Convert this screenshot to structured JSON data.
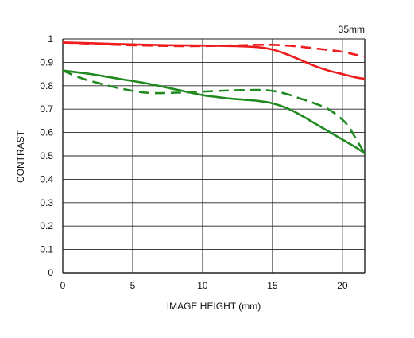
{
  "chart_data": {
    "type": "line",
    "title": "35mm",
    "xlabel": "IMAGE HEIGHT (mm)",
    "ylabel": "CONTRAST",
    "xlim": [
      0,
      21.6
    ],
    "ylim": [
      0,
      1
    ],
    "xticks": [
      0,
      5,
      10,
      15,
      20
    ],
    "xtick_labels": [
      "0",
      "5",
      "10",
      "15",
      "20"
    ],
    "yticks": [
      0,
      0.1,
      0.2,
      0.3,
      0.4,
      0.5,
      0.6,
      0.7,
      0.8,
      0.9,
      1
    ],
    "ytick_labels": [
      "0",
      "0.1",
      "0.2",
      "0.3",
      "0.4",
      "0.5",
      "0.6",
      "0.7",
      "0.8",
      "0.9",
      "1"
    ],
    "grid": true,
    "colors": {
      "red": "#ee1c1c",
      "green": "#1f8a1f",
      "grid": "#222222"
    },
    "series": [
      {
        "color": "#ee1c1c",
        "dash": "solid",
        "x": [
          0,
          2,
          4,
          6,
          8,
          10,
          12,
          14,
          15,
          16,
          17,
          18,
          19,
          20,
          21,
          21.6
        ],
        "y": [
          0.985,
          0.982,
          0.978,
          0.975,
          0.973,
          0.972,
          0.97,
          0.965,
          0.955,
          0.935,
          0.91,
          0.885,
          0.865,
          0.85,
          0.835,
          0.83
        ]
      },
      {
        "color": "#ee1c1c",
        "dash": "dashed",
        "x": [
          0,
          2,
          4,
          6,
          8,
          10,
          12,
          14,
          15,
          16,
          17,
          18,
          19,
          20,
          21,
          21.6
        ],
        "y": [
          0.985,
          0.98,
          0.975,
          0.972,
          0.97,
          0.97,
          0.972,
          0.975,
          0.975,
          0.972,
          0.967,
          0.96,
          0.953,
          0.945,
          0.932,
          0.925
        ]
      },
      {
        "color": "#1f8a1f",
        "dash": "solid",
        "x": [
          0,
          2,
          4,
          6,
          8,
          10,
          11,
          12,
          13,
          14,
          15,
          16,
          17,
          18,
          19,
          20,
          21,
          21.6
        ],
        "y": [
          0.865,
          0.85,
          0.83,
          0.81,
          0.785,
          0.76,
          0.752,
          0.745,
          0.74,
          0.735,
          0.725,
          0.705,
          0.675,
          0.64,
          0.605,
          0.57,
          0.535,
          0.51
        ]
      },
      {
        "color": "#1f8a1f",
        "dash": "dashed",
        "x": [
          0,
          1,
          2,
          4,
          6,
          8,
          10,
          12,
          14,
          15,
          16,
          17,
          18,
          19,
          20,
          20.5,
          21,
          21.6
        ],
        "y": [
          0.865,
          0.84,
          0.82,
          0.79,
          0.77,
          0.77,
          0.775,
          0.78,
          0.782,
          0.778,
          0.765,
          0.745,
          0.725,
          0.7,
          0.655,
          0.62,
          0.57,
          0.51
        ]
      }
    ]
  }
}
